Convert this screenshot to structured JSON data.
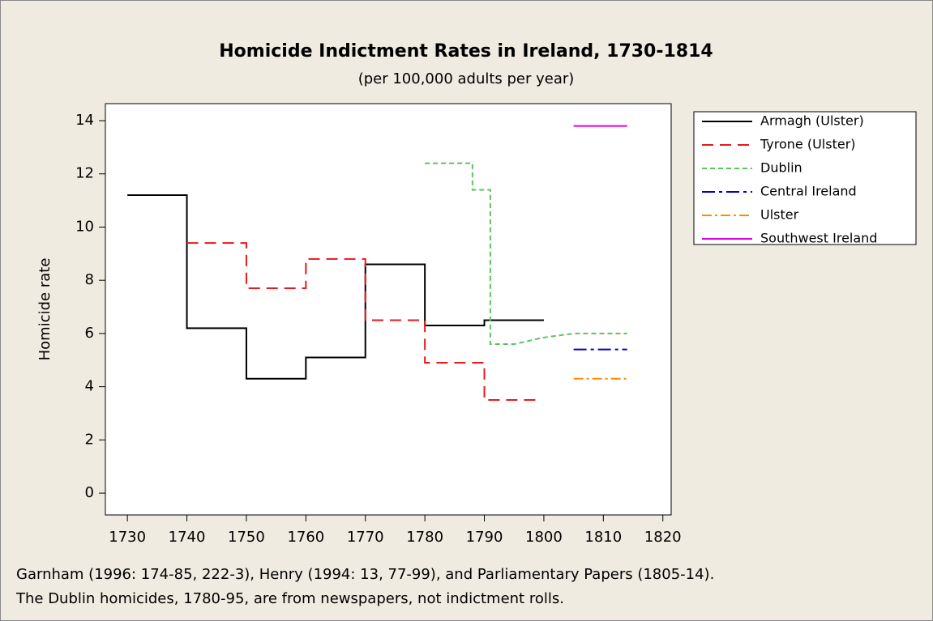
{
  "chart_data": {
    "type": "line",
    "title": "Homicide Indictment Rates in Ireland, 1730-1814",
    "subtitle": "(per 100,000 adults per year)",
    "ylabel": "Homicide rate",
    "notes": [
      "Garnham (1996: 174-85, 222-3), Henry (1994: 13, 77-99), and Parliamentary Papers (1805-14).",
      "The Dublin homicides, 1780-95, are from newspapers, not indictment rolls."
    ],
    "xlim": [
      1726.3,
      1821.4
    ],
    "xticks": [
      1730,
      1740,
      1750,
      1760,
      1770,
      1780,
      1790,
      1800,
      1810,
      1820
    ],
    "ylim": [
      -0.82,
      14.64
    ],
    "yticks": [
      0,
      2,
      4,
      6,
      8,
      10,
      12,
      14
    ],
    "legend": "right",
    "series": [
      {
        "name": "Armagh (Ulster)",
        "color": "#000000",
        "dash": "none",
        "x": [
          1730,
          1740,
          1740,
          1750,
          1750,
          1760,
          1760,
          1770,
          1770,
          1780,
          1780,
          1790,
          1790,
          1800
        ],
        "values": [
          11.2,
          11.2,
          6.2,
          6.2,
          4.3,
          4.3,
          5.1,
          5.1,
          8.6,
          8.6,
          6.3,
          6.3,
          6.5,
          6.5
        ]
      },
      {
        "name": "Tyrone (Ulster)",
        "color": "#e41a1c",
        "dash": "14,8",
        "x": [
          1740,
          1750,
          1750,
          1760,
          1760,
          1770,
          1770,
          1780,
          1780,
          1790,
          1790,
          1799
        ],
        "values": [
          9.4,
          9.4,
          7.7,
          7.7,
          8.8,
          8.8,
          6.5,
          6.5,
          4.9,
          4.9,
          3.5,
          3.5
        ]
      },
      {
        "name": "Dublin",
        "color": "#5cc35c",
        "dash": "6,4",
        "x": [
          1780,
          1788,
          1788,
          1791,
          1791,
          1795,
          1800,
          1805,
          1814
        ],
        "values": [
          12.4,
          12.4,
          11.4,
          11.4,
          5.6,
          5.6,
          5.85,
          6,
          6
        ]
      },
      {
        "name": "Central Ireland",
        "color": "#0000cc",
        "dash": "16,5,4,5",
        "x": [
          1805,
          1814
        ],
        "values": [
          5.4,
          5.4
        ]
      },
      {
        "name": "Ulster",
        "color": "#ff8c00",
        "dash": "12,4,3,4",
        "x": [
          1805,
          1814
        ],
        "values": [
          4.3,
          4.3
        ]
      },
      {
        "name": "Southwest Ireland",
        "color": "#dd00dd",
        "dash": "none",
        "x": [
          1805,
          1814
        ],
        "values": [
          13.8,
          13.8
        ]
      }
    ]
  }
}
